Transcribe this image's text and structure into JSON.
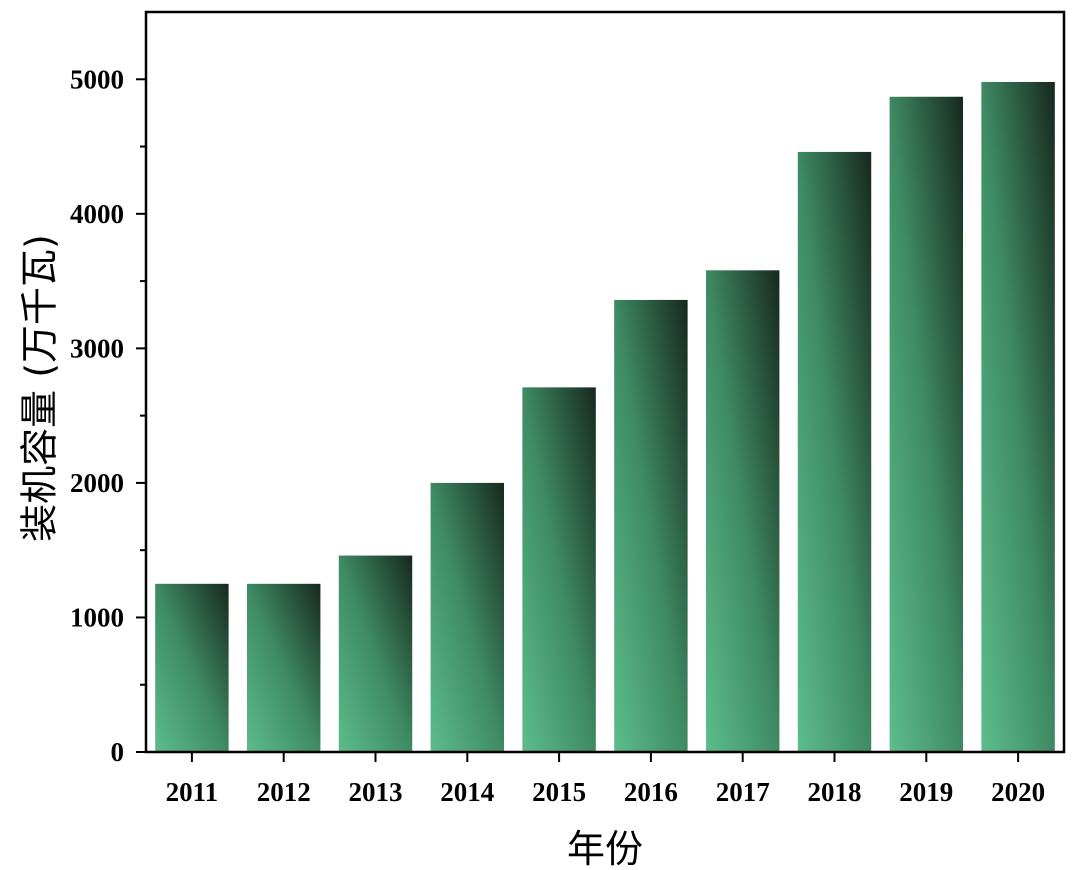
{
  "chart_data": {
    "type": "bar",
    "title": "",
    "xlabel": "年份",
    "ylabel": "装机容量 (万千瓦)",
    "categories": [
      "2011",
      "2012",
      "2013",
      "2014",
      "2015",
      "2016",
      "2017",
      "2018",
      "2019",
      "2020"
    ],
    "values": [
      1250,
      1250,
      1460,
      2000,
      2710,
      3360,
      3580,
      4460,
      4870,
      4980
    ],
    "ylim": [
      0,
      5500
    ],
    "yticks": [
      0,
      1000,
      2000,
      3000,
      4000,
      5000
    ],
    "ytick_labels": [
      "0",
      "1000",
      "2000",
      "3000",
      "4000",
      "5000"
    ],
    "grid": false,
    "legend": "none",
    "colors": {
      "bar_light": "#5dbd8c",
      "bar_mid": "#3e8a63",
      "bar_dark": "#17281f",
      "axis": "#000000"
    }
  }
}
